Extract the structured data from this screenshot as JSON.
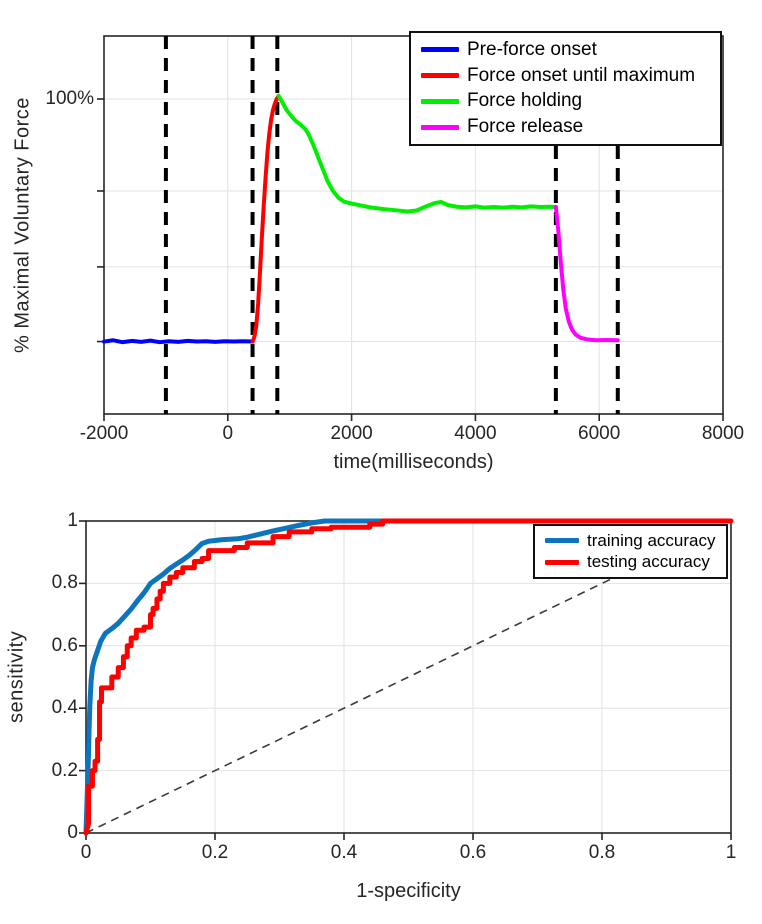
{
  "figure": {
    "background": "#ffffff",
    "text_color": "#262626",
    "grid_color": "#e2e2e2",
    "box_color": "#262626"
  },
  "chart_data": [
    {
      "type": "line",
      "ylabel": "% Maximal Voluntary Force",
      "xlabel": "time(milliseconds)",
      "xlim": [
        -2000,
        8000
      ],
      "ylim": [
        0,
        120
      ],
      "xticks": [
        "-2000",
        "0",
        "2000",
        "4000",
        "6000",
        "8000"
      ],
      "xtick_values": [
        -2000,
        0,
        2000,
        4000,
        6000,
        8000
      ],
      "ytick_label": "100%",
      "ytick_value": 100,
      "grid": "on",
      "grid_y_values": [
        100,
        70.8,
        46.7,
        23
      ],
      "legend_position": "top-right",
      "event_marker_times": [
        -1000,
        400,
        800,
        5300,
        6300
      ],
      "event_marker_style": {
        "color": "#000000",
        "dash": "13 9",
        "width": 4
      },
      "line_width": 4,
      "series": [
        {
          "name": "Pre-force onset",
          "color": "#0000ff",
          "points": [
            [
              -2000,
              23
            ],
            [
              -1850,
              23.4
            ],
            [
              -1700,
              22.8
            ],
            [
              -1550,
              23.2
            ],
            [
              -1400,
              22.9
            ],
            [
              -1250,
              23.3
            ],
            [
              -1100,
              22.8
            ],
            [
              -950,
              23.1
            ],
            [
              -800,
              22.9
            ],
            [
              -650,
              23.2
            ],
            [
              -500,
              23
            ],
            [
              -350,
              23.1
            ],
            [
              -200,
              22.9
            ],
            [
              -50,
              23.1
            ],
            [
              100,
              23
            ],
            [
              250,
              23.1
            ],
            [
              400,
              23
            ]
          ]
        },
        {
          "name": "Force onset until maximum",
          "color": "#ff0000",
          "points": [
            [
              400,
              23
            ],
            [
              430,
              24.5
            ],
            [
              460,
              28
            ],
            [
              490,
              35
            ],
            [
              520,
              45
            ],
            [
              550,
              56
            ],
            [
              580,
              66
            ],
            [
              610,
              75
            ],
            [
              640,
              83
            ],
            [
              670,
              89
            ],
            [
              700,
              93.5
            ],
            [
              730,
              96.5
            ],
            [
              760,
              98.5
            ],
            [
              790,
              100
            ],
            [
              820,
              101
            ]
          ]
        },
        {
          "name": "Force holding",
          "color": "#00ee00",
          "points": [
            [
              820,
              101
            ],
            [
              880,
              99
            ],
            [
              950,
              96.5
            ],
            [
              1030,
              94.5
            ],
            [
              1100,
              93
            ],
            [
              1180,
              91.8
            ],
            [
              1250,
              90.5
            ],
            [
              1300,
              89
            ],
            [
              1380,
              85.5
            ],
            [
              1450,
              82
            ],
            [
              1530,
              78
            ],
            [
              1610,
              74
            ],
            [
              1700,
              70.8
            ],
            [
              1790,
              68.6
            ],
            [
              1880,
              67.4
            ],
            [
              2000,
              66.8
            ],
            [
              2150,
              66.2
            ],
            [
              2300,
              65.6
            ],
            [
              2500,
              65.1
            ],
            [
              2700,
              64.7
            ],
            [
              2900,
              64.3
            ],
            [
              3050,
              64.6
            ],
            [
              3200,
              65.9
            ],
            [
              3350,
              67
            ],
            [
              3450,
              67.3
            ],
            [
              3560,
              66.3
            ],
            [
              3700,
              65.8
            ],
            [
              3850,
              65.6
            ],
            [
              4000,
              65.9
            ],
            [
              4150,
              65.5
            ],
            [
              4300,
              65.7
            ],
            [
              4450,
              65.5
            ],
            [
              4600,
              65.8
            ],
            [
              4750,
              65.6
            ],
            [
              4900,
              65.9
            ],
            [
              5050,
              65.7
            ],
            [
              5200,
              65.8
            ],
            [
              5300,
              65.7
            ]
          ]
        },
        {
          "name": "Force release",
          "color": "#ff00ff",
          "points": [
            [
              5300,
              65.7
            ],
            [
              5340,
              58
            ],
            [
              5380,
              48
            ],
            [
              5420,
              39.5
            ],
            [
              5460,
              33.5
            ],
            [
              5510,
              29.3
            ],
            [
              5560,
              26.8
            ],
            [
              5620,
              25.2
            ],
            [
              5700,
              24.2
            ],
            [
              5800,
              23.7
            ],
            [
              5950,
              23.4
            ],
            [
              6100,
              23.5
            ],
            [
              6300,
              23.4
            ]
          ]
        }
      ]
    },
    {
      "type": "line",
      "ylabel": "sensitivity",
      "xlabel": "1-specificity",
      "xlim": [
        0,
        1
      ],
      "ylim": [
        0,
        1
      ],
      "xticks": [
        "0",
        "0.2",
        "0.4",
        "0.6",
        "0.8",
        "1"
      ],
      "yticks": [
        "0",
        "0.2",
        "0.4",
        "0.6",
        "0.8",
        "1"
      ],
      "xtick_values": [
        0,
        0.2,
        0.4,
        0.6,
        0.8,
        1
      ],
      "ytick_values": [
        0,
        0.2,
        0.4,
        0.6,
        0.8,
        1
      ],
      "grid": "on",
      "legend_position": "top-right",
      "reference_line": {
        "style": "dashed",
        "color": "#3a3a3a",
        "dash": "8 6",
        "width": 1.6,
        "points": [
          [
            0,
            0
          ],
          [
            1,
            1
          ]
        ]
      },
      "line_width": 5,
      "series": [
        {
          "name": "training accuracy",
          "color": "#0d74be",
          "points": [
            [
              0,
              0
            ],
            [
              0.004,
              0.26
            ],
            [
              0.005,
              0.35
            ],
            [
              0.006,
              0.41
            ],
            [
              0.008,
              0.49
            ],
            [
              0.01,
              0.53
            ],
            [
              0.013,
              0.555
            ],
            [
              0.018,
              0.585
            ],
            [
              0.023,
              0.615
            ],
            [
              0.03,
              0.64
            ],
            [
              0.04,
              0.655
            ],
            [
              0.05,
              0.672
            ],
            [
              0.06,
              0.695
            ],
            [
              0.07,
              0.718
            ],
            [
              0.08,
              0.745
            ],
            [
              0.09,
              0.77
            ],
            [
              0.1,
              0.8
            ],
            [
              0.11,
              0.815
            ],
            [
              0.12,
              0.83
            ],
            [
              0.13,
              0.848
            ],
            [
              0.14,
              0.862
            ],
            [
              0.15,
              0.875
            ],
            [
              0.16,
              0.89
            ],
            [
              0.17,
              0.908
            ],
            [
              0.18,
              0.928
            ],
            [
              0.19,
              0.935
            ],
            [
              0.21,
              0.94
            ],
            [
              0.235,
              0.943
            ],
            [
              0.25,
              0.948
            ],
            [
              0.27,
              0.958
            ],
            [
              0.29,
              0.968
            ],
            [
              0.31,
              0.977
            ],
            [
              0.33,
              0.986
            ],
            [
              0.35,
              0.994
            ],
            [
              0.37,
              1
            ],
            [
              0.46,
              1
            ]
          ]
        },
        {
          "name": "testing accuracy",
          "color": "#ff0000",
          "points": [
            [
              0,
              0
            ],
            [
              0.004,
              0.03
            ],
            [
              0.004,
              0.15
            ],
            [
              0.01,
              0.15
            ],
            [
              0.01,
              0.2
            ],
            [
              0.014,
              0.2
            ],
            [
              0.014,
              0.23
            ],
            [
              0.018,
              0.23
            ],
            [
              0.018,
              0.3
            ],
            [
              0.021,
              0.3
            ],
            [
              0.021,
              0.42
            ],
            [
              0.024,
              0.42
            ],
            [
              0.024,
              0.465
            ],
            [
              0.04,
              0.465
            ],
            [
              0.04,
              0.5
            ],
            [
              0.05,
              0.5
            ],
            [
              0.05,
              0.53
            ],
            [
              0.058,
              0.53
            ],
            [
              0.058,
              0.565
            ],
            [
              0.064,
              0.565
            ],
            [
              0.064,
              0.6
            ],
            [
              0.07,
              0.6
            ],
            [
              0.07,
              0.625
            ],
            [
              0.078,
              0.625
            ],
            [
              0.078,
              0.65
            ],
            [
              0.09,
              0.65
            ],
            [
              0.09,
              0.66
            ],
            [
              0.1,
              0.66
            ],
            [
              0.1,
              0.7
            ],
            [
              0.104,
              0.7
            ],
            [
              0.104,
              0.72
            ],
            [
              0.11,
              0.72
            ],
            [
              0.11,
              0.75
            ],
            [
              0.115,
              0.75
            ],
            [
              0.115,
              0.775
            ],
            [
              0.12,
              0.775
            ],
            [
              0.12,
              0.8
            ],
            [
              0.13,
              0.8
            ],
            [
              0.13,
              0.82
            ],
            [
              0.14,
              0.82
            ],
            [
              0.14,
              0.835
            ],
            [
              0.15,
              0.835
            ],
            [
              0.15,
              0.85
            ],
            [
              0.168,
              0.85
            ],
            [
              0.168,
              0.87
            ],
            [
              0.18,
              0.87
            ],
            [
              0.18,
              0.88
            ],
            [
              0.19,
              0.88
            ],
            [
              0.19,
              0.905
            ],
            [
              0.23,
              0.905
            ],
            [
              0.23,
              0.915
            ],
            [
              0.25,
              0.915
            ],
            [
              0.25,
              0.93
            ],
            [
              0.29,
              0.93
            ],
            [
              0.29,
              0.95
            ],
            [
              0.315,
              0.95
            ],
            [
              0.315,
              0.965
            ],
            [
              0.35,
              0.965
            ],
            [
              0.35,
              0.975
            ],
            [
              0.38,
              0.975
            ],
            [
              0.38,
              0.98
            ],
            [
              0.44,
              0.98
            ],
            [
              0.44,
              0.99
            ],
            [
              0.46,
              0.99
            ],
            [
              0.46,
              1
            ],
            [
              1,
              1
            ]
          ]
        }
      ]
    }
  ]
}
